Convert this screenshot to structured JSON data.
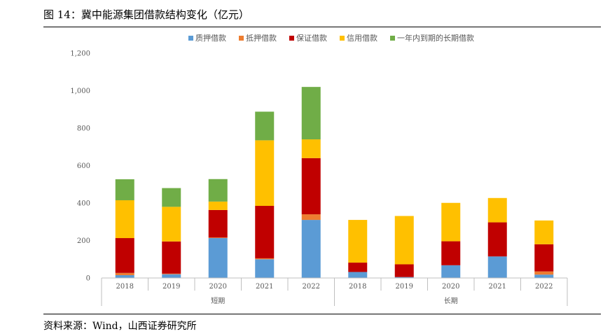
{
  "figure": {
    "title": "图 14：冀中能源集团借款结构变化（亿元）",
    "source": "资料来源：Wind，山西证券研究所"
  },
  "chart_data": {
    "type": "bar",
    "stacked": true,
    "groups": [
      {
        "label": "短期",
        "categories": [
          "2018",
          "2019",
          "2020",
          "2021",
          "2022"
        ]
      },
      {
        "label": "长期",
        "categories": [
          "2018",
          "2019",
          "2020",
          "2021",
          "2022"
        ]
      }
    ],
    "categories": [
      "2018",
      "2019",
      "2020",
      "2021",
      "2022",
      "2018",
      "2019",
      "2020",
      "2021",
      "2022"
    ],
    "series": [
      {
        "name": "质押借款",
        "color": "#5B9BD5",
        "values": [
          15,
          20,
          213,
          100,
          310,
          32,
          5,
          68,
          115,
          18
        ]
      },
      {
        "name": "抵押借款",
        "color": "#ED7D31",
        "values": [
          12,
          3,
          3,
          5,
          30,
          0,
          0,
          0,
          0,
          17
        ]
      },
      {
        "name": "保证借款",
        "color": "#C00000",
        "values": [
          186,
          172,
          147,
          280,
          300,
          50,
          68,
          128,
          182,
          145
        ]
      },
      {
        "name": "信用借款",
        "color": "#FFC000",
        "values": [
          202,
          185,
          45,
          350,
          100,
          228,
          258,
          205,
          130,
          127
        ]
      },
      {
        "name": "一年内到期的长期借款",
        "color": "#70AD47",
        "values": [
          112,
          100,
          120,
          153,
          280,
          0,
          0,
          0,
          0,
          0
        ]
      }
    ],
    "ylim": [
      0,
      1200
    ],
    "yticks": [
      "0",
      "200",
      "400",
      "600",
      "800",
      "1,000",
      "1,200"
    ],
    "ytick_values": [
      0,
      200,
      400,
      600,
      800,
      1000,
      1200
    ],
    "grid": false,
    "legend_position": "top"
  }
}
